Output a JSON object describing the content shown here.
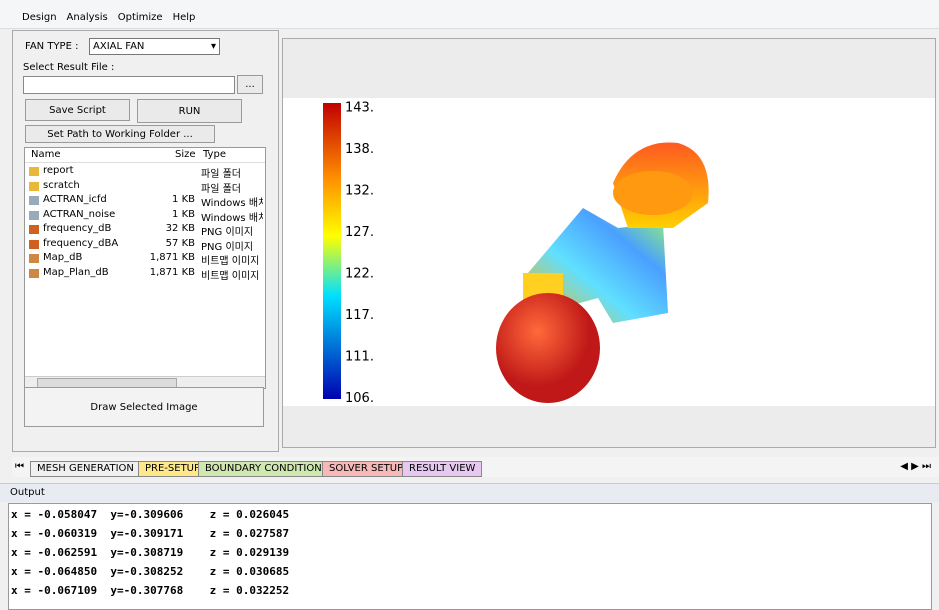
{
  "menu": [
    "Design",
    "Analysis",
    "Optimize",
    "Help"
  ],
  "panel": {
    "fan_type_label": "FAN TYPE :",
    "fan_type_value": "AXIAL FAN",
    "select_result_label": "Select Result File :",
    "browse_button": "...",
    "save_script": "Save Script",
    "run": "RUN",
    "set_path": "Set Path to Working Folder ...",
    "draw_button": "Draw Selected Image",
    "file_headers": [
      "Name",
      "Size",
      "Type"
    ],
    "files": [
      [
        "report",
        "",
        "파일 폴더"
      ],
      [
        "scratch",
        "",
        "파일 폴더"
      ],
      [
        "ACTRAN_icfd",
        "1 KB",
        "Windows 배치"
      ],
      [
        "ACTRAN_noise",
        "1 KB",
        "Windows 배치"
      ],
      [
        "frequency_dB",
        "32 KB",
        "PNG 이미지"
      ],
      [
        "frequency_dBA",
        "57 KB",
        "PNG 이미지"
      ],
      [
        "Map_dB",
        "1,871 KB",
        "비트맵 이미지"
      ],
      [
        "Map_Plan_dB",
        "1,871 KB",
        "비트맵 이미지"
      ]
    ]
  },
  "viewer": {
    "colorbar_labels": [
      "143.",
      "138.",
      "132.",
      "127.",
      "122.",
      "117.",
      "111.",
      "106."
    ]
  },
  "tabs": [
    "MESH GENERATION",
    "PRE-SETUP",
    "BOUNDARY CONDITION",
    "SOLVER SETUP",
    "RESULT VIEW"
  ],
  "output": {
    "title": "Output",
    "lines": [
      "x = -0.058047  y=-0.309606    z = 0.026045",
      "x = -0.060319  y=-0.309171    z = 0.027587",
      "x = -0.062591  y=-0.308719    z = 0.029139",
      "x = -0.064850  y=-0.308252    z = 0.030685",
      "x = -0.067109  y=-0.307768    z = 0.032252"
    ]
  }
}
